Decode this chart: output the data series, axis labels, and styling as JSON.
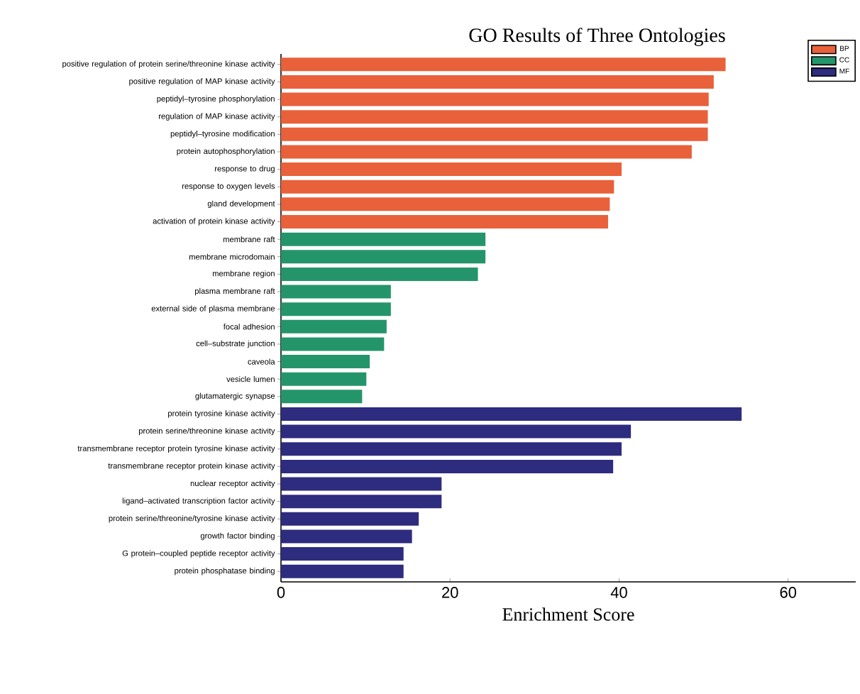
{
  "chart_data": {
    "type": "bar",
    "orientation": "horizontal",
    "title": "GO Results of Three Ontologies",
    "xlabel": "Enrichment Score",
    "categories": [
      "positive regulation of protein serine/threonine kinase activity",
      "positive regulation of MAP kinase activity",
      "peptidyl–tyrosine phosphorylation",
      "regulation of MAP kinase activity",
      "peptidyl–tyrosine modification",
      "protein autophosphorylation",
      "response to drug",
      "response to oxygen levels",
      "gland development",
      "activation of protein kinase activity",
      "membrane raft",
      "membrane microdomain",
      "membrane region",
      "plasma membrane raft",
      "external side of plasma membrane",
      "focal adhesion",
      "cell–substrate junction",
      "caveola",
      "vesicle lumen",
      "glutamatergic synapse",
      "protein tyrosine kinase activity",
      "protein serine/threonine kinase activity",
      "transmembrane receptor protein tyrosine kinase activity",
      "transmembrane receptor protein kinase activity",
      "nuclear receptor activity",
      "ligand–activated transcription factor activity",
      "protein serine/threonine/tyrosine kinase activity",
      "growth factor binding",
      "G protein–coupled peptide receptor activity",
      "protein phosphatase binding"
    ],
    "series": [
      {
        "name": "BP",
        "color": "#e8613a",
        "values": [
          52.6,
          51.2,
          50.6,
          50.5,
          50.5,
          48.6,
          40.3,
          39.4,
          38.9,
          38.7,
          null,
          null,
          null,
          null,
          null,
          null,
          null,
          null,
          null,
          null,
          null,
          null,
          null,
          null,
          null,
          null,
          null,
          null,
          null,
          null
        ]
      },
      {
        "name": "CC",
        "color": "#24956a",
        "values": [
          null,
          null,
          null,
          null,
          null,
          null,
          null,
          null,
          null,
          null,
          24.2,
          24.2,
          23.3,
          13.0,
          13.0,
          12.5,
          12.2,
          10.5,
          10.1,
          9.6,
          null,
          null,
          null,
          null,
          null,
          null,
          null,
          null,
          null,
          null
        ]
      },
      {
        "name": "MF",
        "color": "#2e2c7e",
        "values": [
          null,
          null,
          null,
          null,
          null,
          null,
          null,
          null,
          null,
          null,
          null,
          null,
          null,
          null,
          null,
          null,
          null,
          null,
          null,
          null,
          54.5,
          41.4,
          40.3,
          39.3,
          19.0,
          19.0,
          16.3,
          15.5,
          14.5,
          14.5
        ]
      }
    ],
    "xlim": [
      0,
      68
    ],
    "xticks": [
      0,
      20,
      40,
      60
    ],
    "legend": "top right"
  }
}
